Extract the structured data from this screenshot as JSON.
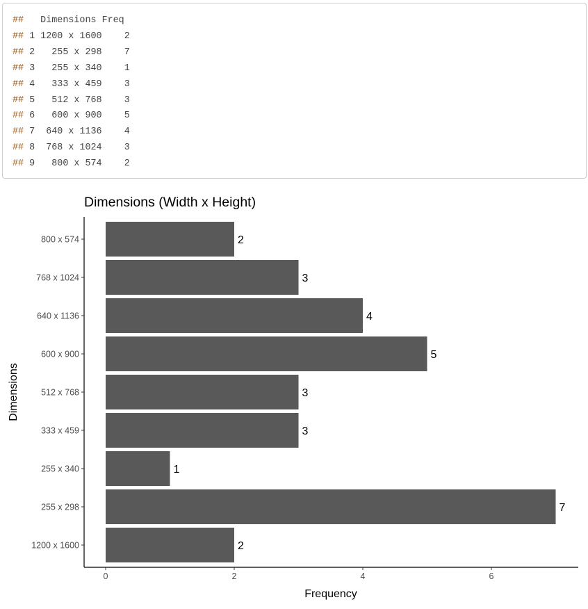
{
  "console": {
    "prefix": "##",
    "header": "   Dimensions Freq",
    "rows": [
      " 1 1200 x 1600    2",
      " 2   255 x 298    7",
      " 3   255 x 340    1",
      " 4   333 x 459    3",
      " 5   512 x 768    3",
      " 6   600 x 900    5",
      " 7  640 x 1136    4",
      " 8  768 x 1024    3",
      " 9   800 x 574    2"
    ]
  },
  "chart_data": {
    "type": "bar",
    "orientation": "horizontal",
    "title": "Dimensions (Width x Height)",
    "xlabel": "Frequency",
    "ylabel": "Dimensions",
    "categories": [
      "1200 x 1600",
      "255 x 298",
      "255 x 340",
      "333 x 459",
      "512 x 768",
      "600 x 900",
      "640 x 1136",
      "768 x 1024",
      "800 x 574"
    ],
    "values": [
      2,
      7,
      1,
      3,
      3,
      5,
      4,
      3,
      2
    ],
    "xticks": [
      0,
      2,
      4,
      6
    ],
    "xlim": [
      -0.35,
      7.35
    ],
    "bar_color": "#595959",
    "grid": false
  }
}
